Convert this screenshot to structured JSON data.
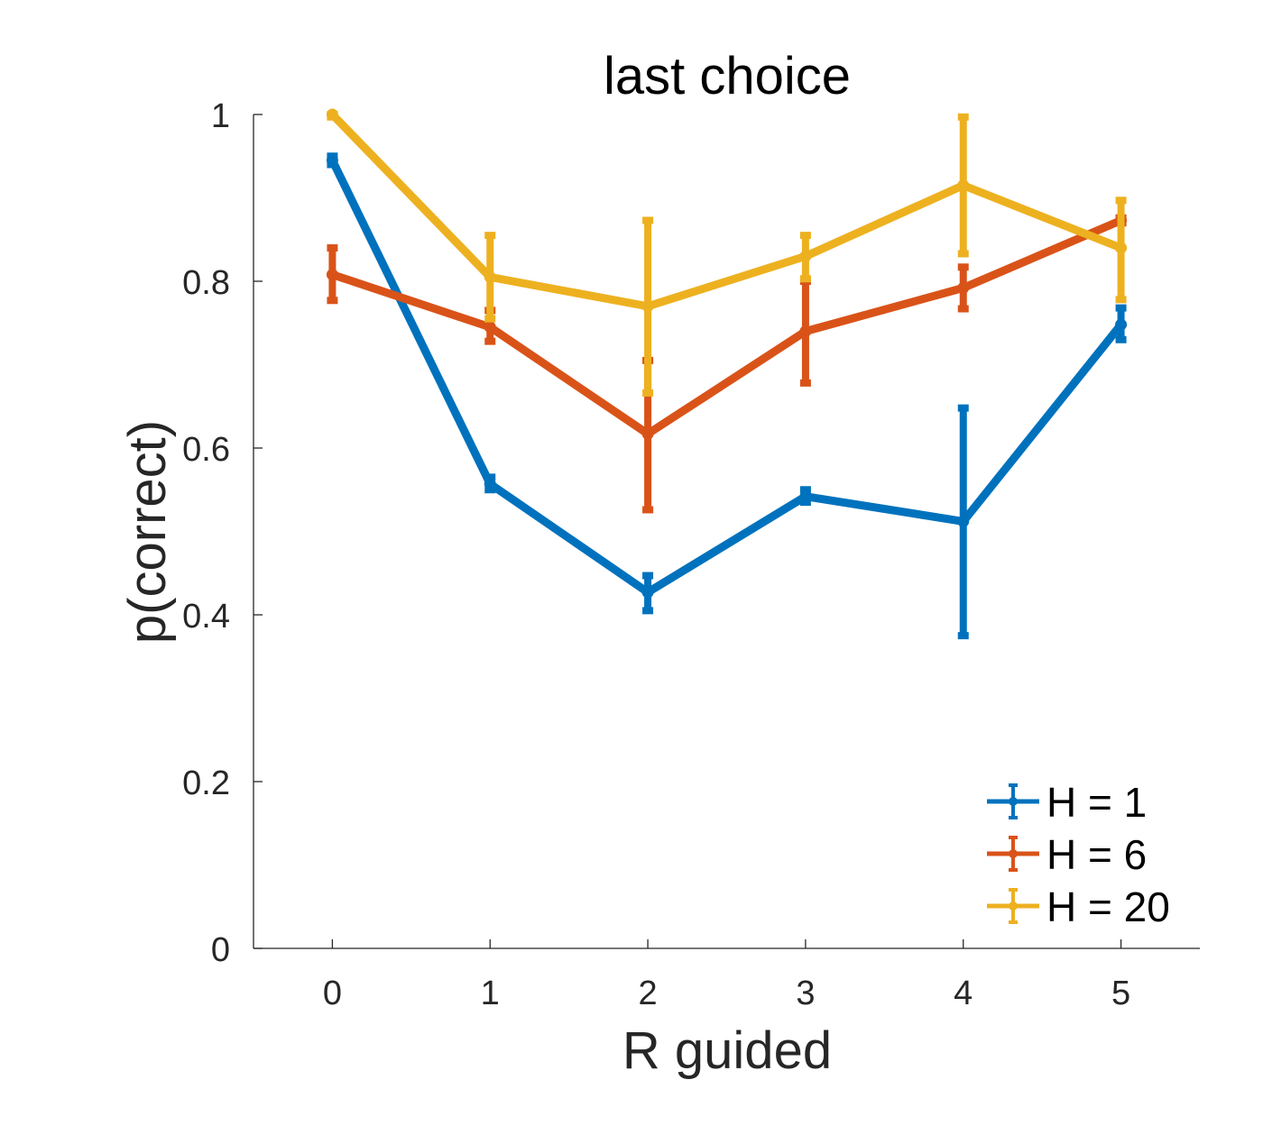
{
  "chart_data": {
    "type": "line",
    "title": "last choice",
    "xlabel": "R guided",
    "ylabel": "p(correct)",
    "x": [
      0,
      1,
      2,
      3,
      4,
      5
    ],
    "xlim": [
      -0.5,
      5.5
    ],
    "ylim": [
      0,
      1
    ],
    "xticks": [
      "0",
      "1",
      "2",
      "3",
      "4",
      "5"
    ],
    "yticks": [
      "0",
      "0.2",
      "0.4",
      "0.6",
      "0.8",
      "1"
    ],
    "ytick_values": [
      0,
      0.2,
      0.4,
      0.6,
      0.8,
      1
    ],
    "grid": false,
    "legend_position": "bottom-right",
    "error_bars": true,
    "series": [
      {
        "name": "H = 1",
        "color": "#0072BD",
        "values": [
          0.945,
          0.557,
          0.427,
          0.542,
          0.512,
          0.748
        ],
        "lower": [
          0.94,
          0.55,
          0.405,
          0.535,
          0.375,
          0.73
        ],
        "upper": [
          0.95,
          0.565,
          0.447,
          0.55,
          0.648,
          0.768
        ]
      },
      {
        "name": "H = 6",
        "color": "#D95319",
        "values": [
          0.808,
          0.745,
          0.617,
          0.74,
          0.792,
          0.873
        ],
        "lower": [
          0.777,
          0.728,
          0.526,
          0.678,
          0.767,
          0.87
        ],
        "upper": [
          0.84,
          0.765,
          0.705,
          0.8,
          0.817,
          0.876
        ]
      },
      {
        "name": "H = 20",
        "color": "#EDB120",
        "values": [
          1.0,
          0.805,
          0.77,
          0.83,
          0.915,
          0.84
        ],
        "lower": [
          0.997,
          0.755,
          0.666,
          0.803,
          0.833,
          0.778
        ],
        "upper": [
          1.0,
          0.855,
          0.873,
          0.855,
          0.997,
          0.897
        ]
      }
    ]
  }
}
